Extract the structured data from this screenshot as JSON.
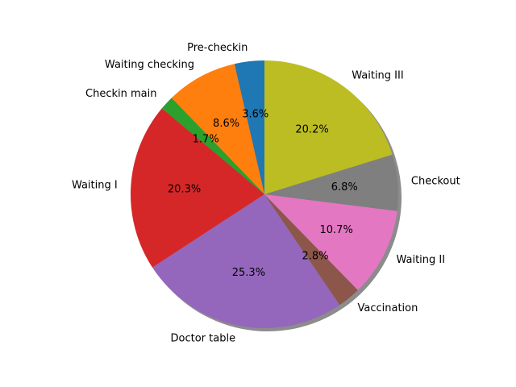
{
  "chart_data": {
    "type": "pie",
    "shadow": true,
    "start_angle_deg": 90,
    "direction": "counterclockwise",
    "slices": [
      {
        "label": "Pre-checkin",
        "value": 3.6,
        "pct_label": "3.6%",
        "color": "#1f77b4"
      },
      {
        "label": "Waiting checking",
        "value": 8.6,
        "pct_label": "8.6%",
        "color": "#ff7f0e"
      },
      {
        "label": "Checkin main",
        "value": 1.7,
        "pct_label": "1.7%",
        "color": "#2ca02c"
      },
      {
        "label": "Waiting I",
        "value": 20.3,
        "pct_label": "20.3%",
        "color": "#d62728"
      },
      {
        "label": "Doctor table",
        "value": 25.3,
        "pct_label": "25.3%",
        "color": "#9467bd"
      },
      {
        "label": "Vaccination",
        "value": 2.8,
        "pct_label": "2.8%",
        "color": "#8c564b"
      },
      {
        "label": "Waiting II",
        "value": 10.7,
        "pct_label": "10.7%",
        "color": "#e377c2"
      },
      {
        "label": "Checkout",
        "value": 6.8,
        "pct_label": "6.8%",
        "color": "#7f7f7f"
      },
      {
        "label": "Waiting III",
        "value": 20.2,
        "pct_label": "20.2%",
        "color": "#bcbd22"
      }
    ]
  }
}
